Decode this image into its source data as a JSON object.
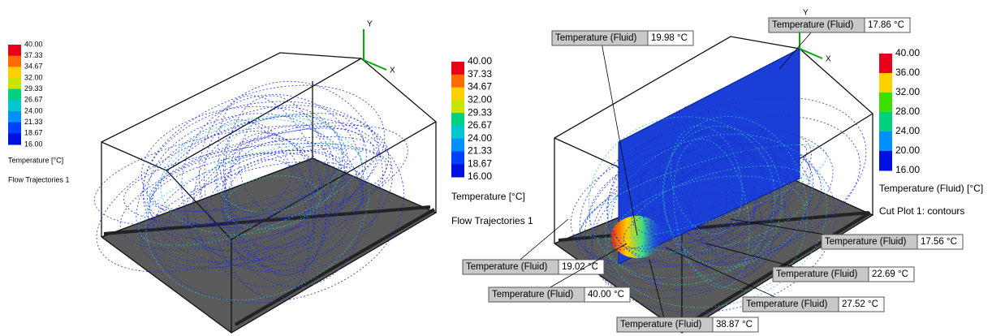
{
  "left_view": {
    "legend": {
      "ticks": [
        "40.00",
        "37.33",
        "34.67",
        "32.00",
        "29.33",
        "26.67",
        "24.00",
        "21.33",
        "18.67",
        "16.00"
      ],
      "quantity": "Temperature [°C]",
      "plot": "Flow Trajectories 1"
    },
    "legend_large": {
      "ticks": [
        "40.00",
        "37.33",
        "34.67",
        "32.00",
        "29.33",
        "26.67",
        "24.00",
        "21.33",
        "18.67",
        "16.00"
      ],
      "quantity": "Temperature [°C]",
      "plot": "Flow Trajectories 1"
    },
    "triad": {
      "y": "Y",
      "x": "X"
    }
  },
  "right_view": {
    "legend": {
      "ticks": [
        "40.00",
        "36.00",
        "32.00",
        "28.00",
        "24.00",
        "20.00",
        "16.00"
      ],
      "quantity": "Temperature (Fluid) [°C]",
      "plot": "Cut Plot 1: contours"
    },
    "triad": {
      "y": "Y",
      "x": "X"
    },
    "probes": [
      {
        "name": "Temperature (Fluid)",
        "value": "19.98 °C"
      },
      {
        "name": "Temperature (Fluid)",
        "value": "17.86 °C"
      },
      {
        "name": "Temperature (Fluid)",
        "value": "17.56 °C"
      },
      {
        "name": "Temperature (Fluid)",
        "value": "19.02 °C"
      },
      {
        "name": "Temperature (Fluid)",
        "value": "22.69 °C"
      },
      {
        "name": "Temperature (Fluid)",
        "value": "40.00 °C"
      },
      {
        "name": "Temperature (Fluid)",
        "value": "27.52 °C"
      },
      {
        "name": "Temperature (Fluid)",
        "value": "38.87 °C"
      }
    ]
  }
}
